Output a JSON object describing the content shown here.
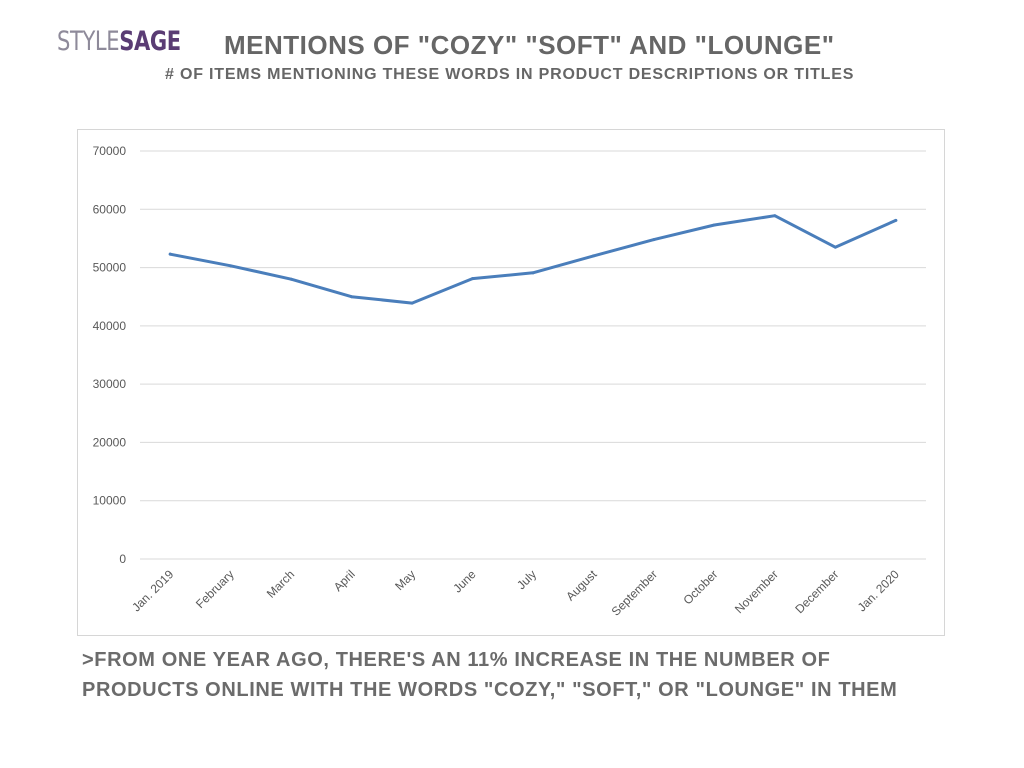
{
  "logo": {
    "style": "STYLE",
    "sage": "SAGE"
  },
  "header": {
    "title": "MENTIONS OF \"COZY\" \"SOFT\" AND \"LOUNGE\"",
    "subtitle": "# OF ITEMS MENTIONING THESE WORDS IN PRODUCT DESCRIPTIONS OR TITLES"
  },
  "footnote": {
    "line1": ">FROM ONE YEAR AGO, THERE'S AN 11% INCREASE IN THE NUMBER OF",
    "line2": "PRODUCTS ONLINE WITH THE WORDS \"COZY,\" \"SOFT,\" OR \"LOUNGE\" IN THEM"
  },
  "chart_data": {
    "type": "line",
    "title": "",
    "xlabel": "",
    "ylabel": "",
    "ylim": [
      0,
      70000
    ],
    "yticks": [
      0,
      10000,
      20000,
      30000,
      40000,
      50000,
      60000,
      70000
    ],
    "grid": true,
    "legend": "none",
    "line_color": "#4a7ebb",
    "categories": [
      "Jan. 2019",
      "February",
      "March",
      "April",
      "May",
      "June",
      "July",
      "August",
      "September",
      "October",
      "November",
      "December",
      "Jan. 2020"
    ],
    "series": [
      {
        "values": [
          52300,
          50300,
          48000,
          45000,
          43900,
          48100,
          49100,
          52000,
          54800,
          57300,
          58900,
          53500,
          58100
        ]
      }
    ]
  }
}
